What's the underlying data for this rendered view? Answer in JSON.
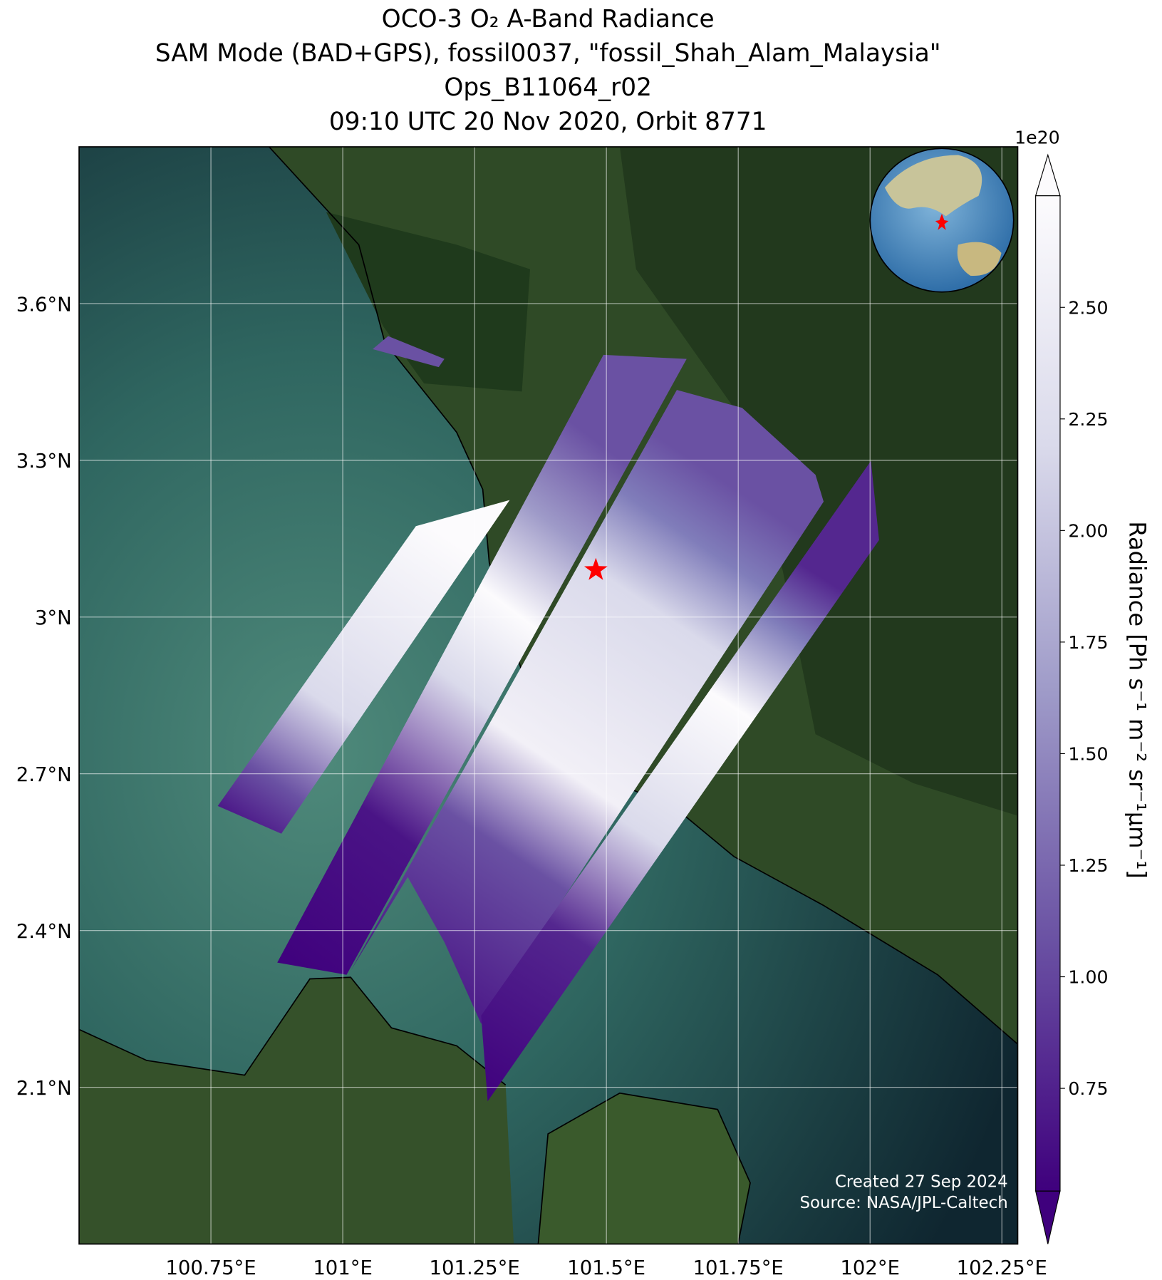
{
  "chart_data": {
    "type": "map",
    "title": [
      "OCO-3 O₂ A-Band Radiance",
      "SAM Mode (BAD+GPS), fossil0037, \"fossil_Shah_Alam_Malaysia\"",
      "Ops_B11064_r02",
      "09:10 UTC 20 Nov 2020, Orbit 8771"
    ],
    "xlim": [
      100.5,
      102.28
    ],
    "ylim": [
      1.8,
      3.9
    ],
    "xticks": [
      {
        "value": 100.75,
        "label": "100.75°E"
      },
      {
        "value": 101,
        "label": "101°E"
      },
      {
        "value": 101.25,
        "label": "101.25°E"
      },
      {
        "value": 101.5,
        "label": "101.5°E"
      },
      {
        "value": 101.75,
        "label": "101.75°E"
      },
      {
        "value": 102,
        "label": "102°E"
      },
      {
        "value": 102.25,
        "label": "102.25°E"
      }
    ],
    "yticks": [
      {
        "value": 2.1,
        "label": "2.1°N"
      },
      {
        "value": 2.4,
        "label": "2.4°N"
      },
      {
        "value": 2.7,
        "label": "2.7°N"
      },
      {
        "value": 3,
        "label": "3°N"
      },
      {
        "value": 3.3,
        "label": "3.3°N"
      },
      {
        "value": 3.6,
        "label": "3.6°N"
      }
    ],
    "grid": true,
    "target": {
      "lon": 101.48,
      "lat": 3.09,
      "color": "#ff0000"
    },
    "colorbar": {
      "label": "Radiance [Ph s⁻¹ m⁻² sr⁻¹μm⁻¹]",
      "offset_label": "1e20",
      "lim": [
        0.52,
        2.75
      ],
      "ticks": [
        0.75,
        {
          "value": 1,
          "label": "1.00"
        },
        1.25,
        {
          "value": 1.5,
          "label": "1.50"
        },
        1.75,
        {
          "value": 2,
          "label": "2.00"
        },
        2.25,
        {
          "value": 2.5,
          "label": "2.50"
        }
      ],
      "colors": [
        "#3f007d",
        "#6a51a3",
        "#9e9ac8",
        "#dadaeb",
        "#fcfbfd"
      ]
    },
    "annotations": [
      "Created 27 Sep 2024",
      "Source: NASA/JPL-Caltech"
    ]
  }
}
